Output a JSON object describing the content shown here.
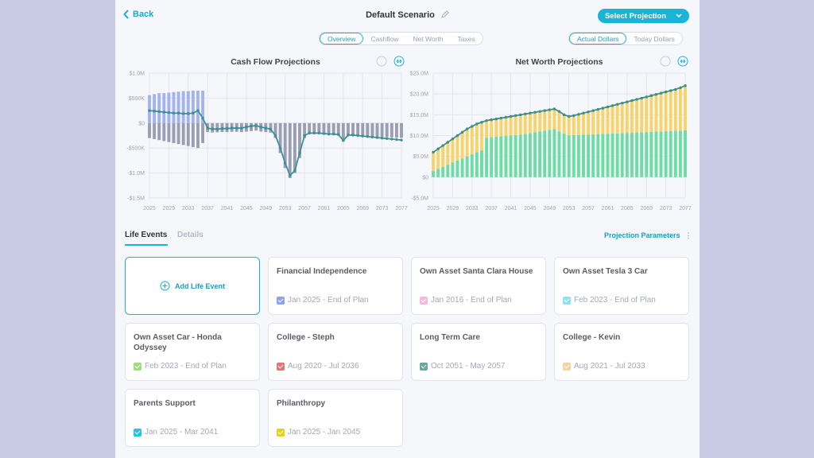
{
  "header": {
    "back": "Back",
    "title": "Default Scenario",
    "button": "Select Projection"
  },
  "tabs": [
    "Overview",
    "Cashflow",
    "Net Worth",
    "Taxes"
  ],
  "dollar_toggle": [
    "Actual Dollars",
    "Today Dollars"
  ],
  "chart_data": [
    {
      "type": "bar",
      "title": "Cash Flow Projections",
      "x": [
        2025,
        2026,
        2027,
        2028,
        2029,
        2030,
        2031,
        2032,
        2033,
        2034,
        2035,
        2036,
        2037,
        2038,
        2039,
        2040,
        2041,
        2042,
        2043,
        2044,
        2045,
        2046,
        2047,
        2048,
        2049,
        2050,
        2051,
        2052,
        2053,
        2054,
        2055,
        2056,
        2057,
        2058,
        2059,
        2060,
        2061,
        2062,
        2063,
        2064,
        2065,
        2066,
        2067,
        2068,
        2069,
        2070,
        2071,
        2072,
        2073,
        2074,
        2075,
        2076,
        2077
      ],
      "xlim": [
        2025,
        2077
      ],
      "xticks": [
        2025,
        2029,
        2033,
        2037,
        2041,
        2045,
        2049,
        2053,
        2057,
        2061,
        2065,
        2069,
        2073,
        2077
      ],
      "ylim": [
        -1500000,
        1000000
      ],
      "yticks": [
        {
          "value": -1500000,
          "label": "-$1.5M"
        },
        {
          "value": -1000000,
          "label": "-$1.0M"
        },
        {
          "value": -500000,
          "label": "-$500K"
        },
        {
          "value": 0,
          "label": "$0"
        },
        {
          "value": 500000,
          "label": "$500K"
        },
        {
          "value": 1000000,
          "label": "$1.0M"
        }
      ],
      "grid": true,
      "series": [
        {
          "type": "bar",
          "color": "#a3b3ee",
          "values": [
            560000,
            580000,
            600000,
            600000,
            610000,
            620000,
            630000,
            640000,
            640000,
            650000,
            650000,
            650000,
            0,
            0,
            0,
            0,
            0,
            0,
            0,
            0,
            0,
            0,
            0,
            0,
            0,
            0,
            0,
            0,
            0,
            0,
            0,
            0,
            0,
            0,
            0,
            0,
            0,
            0,
            0,
            0,
            0,
            0,
            0,
            0,
            0,
            0,
            0,
            0,
            0,
            0,
            0,
            0,
            0
          ]
        },
        {
          "type": "bar",
          "color": "#9a9eb0",
          "values": [
            -300000,
            -320000,
            -340000,
            -360000,
            -380000,
            -400000,
            -420000,
            -440000,
            -460000,
            -480000,
            -500000,
            -400000,
            -180000,
            -190000,
            -185000,
            -180000,
            -180000,
            -175000,
            -175000,
            -180000,
            -170000,
            -160000,
            -150000,
            -170000,
            -180000,
            -190000,
            -300000,
            -600000,
            -900000,
            -1100000,
            -1000000,
            -700000,
            -300000,
            -220000,
            -220000,
            -220000,
            -225000,
            -230000,
            -230000,
            -235000,
            -360000,
            -240000,
            -245000,
            -250000,
            -255000,
            -260000,
            -265000,
            -270000,
            -275000,
            -280000,
            -285000,
            -290000,
            -295000
          ]
        },
        {
          "type": "line",
          "color": "#3f8f9a",
          "values": [
            250000,
            240000,
            230000,
            220000,
            210000,
            200000,
            200000,
            190000,
            190000,
            200000,
            250000,
            100000,
            -100000,
            -120000,
            -120000,
            -110000,
            -110000,
            -100000,
            -100000,
            -100000,
            -80000,
            -60000,
            -50000,
            -80000,
            -100000,
            -120000,
            -250000,
            -500000,
            -800000,
            -1050000,
            -950000,
            -600000,
            -250000,
            -200000,
            -200000,
            -200000,
            -210000,
            -220000,
            -220000,
            -230000,
            -350000,
            -240000,
            -240000,
            -250000,
            -260000,
            -270000,
            -280000,
            -290000,
            -300000,
            -310000,
            -320000,
            -330000,
            -340000
          ]
        }
      ]
    },
    {
      "type": "bar",
      "title": "Net Worth Projections",
      "x": [
        2025,
        2026,
        2027,
        2028,
        2029,
        2030,
        2031,
        2032,
        2033,
        2034,
        2035,
        2036,
        2037,
        2038,
        2039,
        2040,
        2041,
        2042,
        2043,
        2044,
        2045,
        2046,
        2047,
        2048,
        2049,
        2050,
        2051,
        2052,
        2053,
        2054,
        2055,
        2056,
        2057,
        2058,
        2059,
        2060,
        2061,
        2062,
        2063,
        2064,
        2065,
        2066,
        2067,
        2068,
        2069,
        2070,
        2071,
        2072,
        2073,
        2074,
        2075,
        2076,
        2077
      ],
      "xlim": [
        2025,
        2077
      ],
      "xticks": [
        2025,
        2029,
        2033,
        2037,
        2041,
        2045,
        2049,
        2053,
        2057,
        2061,
        2065,
        2069,
        2073,
        2077
      ],
      "ylim": [
        -5000000,
        25000000
      ],
      "yticks": [
        {
          "value": -5000000,
          "label": "-$5.0M"
        },
        {
          "value": 0,
          "label": "$0"
        },
        {
          "value": 5000000,
          "label": "$5.0M"
        },
        {
          "value": 10000000,
          "label": "$10.0M"
        },
        {
          "value": 15000000,
          "label": "$15.0M"
        },
        {
          "value": 20000000,
          "label": "$20.0M"
        },
        {
          "value": 25000000,
          "label": "$25.0M"
        }
      ],
      "grid": true,
      "series": [
        {
          "type": "bar",
          "color": "#6fdca6",
          "values": [
            1500000,
            2000000,
            2500000,
            3000000,
            3500000,
            4000000,
            4500000,
            5000000,
            5500000,
            6000000,
            6500000,
            9500000,
            9600000,
            9700000,
            9800000,
            9900000,
            10000000,
            10100000,
            10200000,
            10400000,
            10600000,
            10800000,
            11000000,
            11200000,
            11400000,
            11600000,
            11000000,
            10500000,
            10000000,
            10100000,
            10150000,
            10200000,
            10250000,
            10300000,
            10350000,
            10400000,
            10450000,
            10500000,
            10550000,
            10600000,
            10650000,
            10700000,
            10750000,
            10800000,
            10850000,
            10900000,
            10950000,
            11000000,
            11050000,
            11100000,
            11150000,
            11200000,
            11250000
          ]
        },
        {
          "type": "bar",
          "color": "#f7d46b",
          "values": [
            4500000,
            4800000,
            5100000,
            5400000,
            5700000,
            6000000,
            6300000,
            6600000,
            6700000,
            6800000,
            6700000,
            4100000,
            4200000,
            4300000,
            4400000,
            4500000,
            4600000,
            4700000,
            4800000,
            4800000,
            4800000,
            4800000,
            4800000,
            4800000,
            4800000,
            4800000,
            4800000,
            4500000,
            4600000,
            4700000,
            4950000,
            5200000,
            5450000,
            5700000,
            5950000,
            6200000,
            6450000,
            6700000,
            6950000,
            7200000,
            7450000,
            7700000,
            7950000,
            8200000,
            8450000,
            8700000,
            8950000,
            9200000,
            9450000,
            9700000,
            9950000,
            10300000,
            10750000
          ]
        },
        {
          "type": "line",
          "color": "#3e8e8a",
          "values": [
            6000000,
            6800000,
            7600000,
            8400000,
            9200000,
            10000000,
            10800000,
            11600000,
            12200000,
            12800000,
            13200000,
            13600000,
            13800000,
            14000000,
            14200000,
            14400000,
            14600000,
            14800000,
            15000000,
            15200000,
            15400000,
            15600000,
            15800000,
            16000000,
            16200000,
            16400000,
            15800000,
            15000000,
            14600000,
            14800000,
            15100000,
            15400000,
            15700000,
            16000000,
            16300000,
            16600000,
            16900000,
            17200000,
            17500000,
            17800000,
            18100000,
            18400000,
            18700000,
            19000000,
            19300000,
            19600000,
            19900000,
            20200000,
            20500000,
            20800000,
            21100000,
            21500000,
            22000000
          ]
        }
      ]
    }
  ],
  "life_events": {
    "tabs": [
      "Life Events",
      "Details"
    ],
    "parameters": "Projection Parameters",
    "add_label": "Add Life Event",
    "cards": [
      {
        "title": "Financial Independence",
        "date": "Jan 2025 - End of Plan",
        "color": "#8ea2e8"
      },
      {
        "title": "Own Asset Santa Clara House",
        "date": "Jan 2016 - End of Plan",
        "color": "#f5b8dd"
      },
      {
        "title": "Own Asset Tesla 3 Car",
        "date": "Feb 2023 - End of Plan",
        "color": "#8fe0ef"
      },
      {
        "title": "Own Asset Car - Honda Odyssey",
        "date": "Feb 2023 - End of Plan",
        "color": "#9edc7f"
      },
      {
        "title": "College - Steph",
        "date": "Aug 2020 - Jul 2036",
        "color": "#e57373"
      },
      {
        "title": "Long Term Care",
        "date": "Oct 2051 - May 2057",
        "color": "#6aa89a"
      },
      {
        "title": "College - Kevin",
        "date": "Aug 2021 - Jul 2033",
        "color": "#f2d3a6"
      },
      {
        "title": "Parents Support",
        "date": "Jan 2025 - Mar 2041",
        "color": "#26c6da"
      },
      {
        "title": "Philanthropy",
        "date": "Jan 2025 - Jan 2045",
        "color": "#e2d21b"
      }
    ]
  }
}
